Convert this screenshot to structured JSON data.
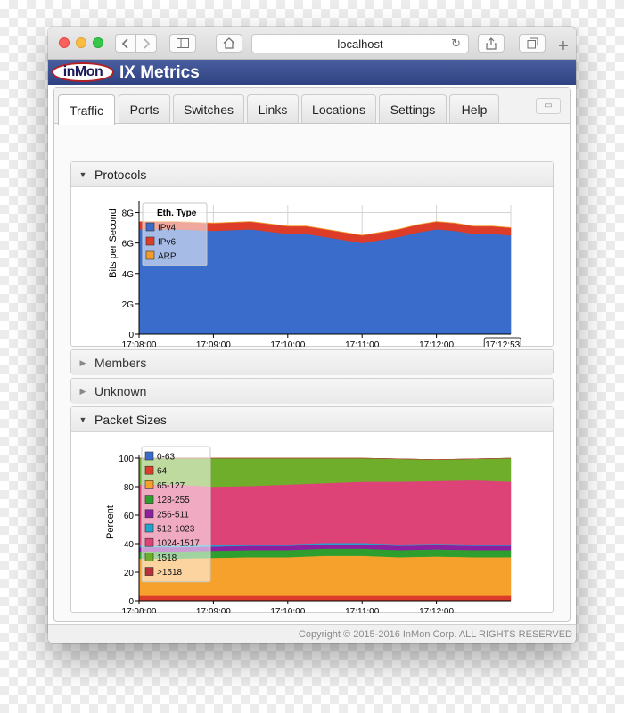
{
  "browser": {
    "url": "localhost",
    "reload_glyph": "↻",
    "new_tab_glyph": "+",
    "icons": [
      "back-icon",
      "forward-icon",
      "sidebar-icon",
      "home-icon",
      "reload-icon",
      "share-icon",
      "tabs-icon",
      "new-tab-icon"
    ]
  },
  "app": {
    "logo_text": "inMon",
    "title": "IX Metrics"
  },
  "tabs": [
    {
      "label": "Traffic",
      "active": true
    },
    {
      "label": "Ports",
      "active": false
    },
    {
      "label": "Switches",
      "active": false
    },
    {
      "label": "Links",
      "active": false
    },
    {
      "label": "Locations",
      "active": false
    },
    {
      "label": "Settings",
      "active": false
    },
    {
      "label": "Help",
      "active": false
    }
  ],
  "panels": {
    "protocols": {
      "title": "Protocols",
      "expanded": true
    },
    "members": {
      "title": "Members",
      "expanded": false
    },
    "unknown": {
      "title": "Unknown",
      "expanded": false
    },
    "packet_sizes": {
      "title": "Packet Sizes",
      "expanded": true
    }
  },
  "footer": "Copyright © 2015-2016 InMon Corp. ALL RIGHTS RESERVED",
  "chart_data": [
    {
      "type": "area",
      "stacked": true,
      "ylabel": "Bits per Second",
      "ylim": [
        0,
        8.5
      ],
      "y_ticks": [
        "0",
        "2G",
        "4G",
        "6G",
        "8G"
      ],
      "y_tick_values": [
        0,
        2,
        4,
        6,
        8
      ],
      "x_ticks": [
        "17:08:00",
        "17:09:00",
        "17:10:00",
        "17:11:00",
        "17:12:00"
      ],
      "x_tick_minutes": [
        0,
        1,
        2,
        3,
        4
      ],
      "x_end_minutes": 5,
      "cursor_label": "17:12:53",
      "cursor_minutes": 4.883,
      "legend_title": "Eth. Type",
      "legend_position": "top-left",
      "grid": true,
      "x": [
        0,
        0.5,
        1,
        1.5,
        2,
        2.25,
        2.5,
        2.75,
        3,
        3.25,
        3.5,
        3.75,
        4,
        4.25,
        4.5,
        4.75,
        5
      ],
      "series": [
        {
          "name": "IPv4",
          "color": "#3a6ccb",
          "values": [
            6.9,
            6.9,
            6.8,
            6.9,
            6.6,
            6.6,
            6.4,
            6.2,
            6.0,
            6.2,
            6.4,
            6.7,
            6.9,
            6.8,
            6.6,
            6.6,
            6.5
          ]
        },
        {
          "name": "IPv6",
          "color": "#dc3c28",
          "values": [
            0.5,
            0.5,
            0.5,
            0.5,
            0.5,
            0.5,
            0.5,
            0.5,
            0.5,
            0.5,
            0.5,
            0.5,
            0.5,
            0.5,
            0.5,
            0.5,
            0.5
          ]
        },
        {
          "name": "ARP",
          "color": "#f39b2c",
          "values": [
            0.02,
            0.02,
            0.02,
            0.02,
            0.02,
            0.02,
            0.02,
            0.02,
            0.02,
            0.02,
            0.02,
            0.02,
            0.02,
            0.02,
            0.02,
            0.02,
            0.02
          ]
        }
      ]
    },
    {
      "type": "area",
      "stacked": true,
      "ylabel": "Percent",
      "ylim": [
        0,
        100
      ],
      "y_ticks": [
        "0",
        "20",
        "40",
        "60",
        "80",
        "100"
      ],
      "y_tick_values": [
        0,
        20,
        40,
        60,
        80,
        100
      ],
      "x_ticks": [
        "17:08:00",
        "17:09:00",
        "17:10:00",
        "17:11:00",
        "17:12:00"
      ],
      "x_tick_minutes": [
        0,
        1,
        2,
        3,
        4
      ],
      "x_end_minutes": 5,
      "legend_position": "top-left",
      "grid": false,
      "x": [
        0,
        0.5,
        1,
        1.5,
        2,
        2.5,
        3,
        3.5,
        4,
        4.5,
        5
      ],
      "series": [
        {
          "name": "0-63",
          "color": "#3a6ccb",
          "values": [
            0.5,
            0.5,
            0.5,
            0.5,
            0.5,
            0.5,
            0.5,
            0.5,
            0.5,
            0.5,
            0.5
          ]
        },
        {
          "name": "64",
          "color": "#dc3c28",
          "values": [
            3,
            3,
            3,
            3,
            3,
            3,
            3,
            3,
            3,
            3,
            3
          ]
        },
        {
          "name": "65-127",
          "color": "#f7a12d",
          "values": [
            26,
            26,
            26.5,
            27,
            27,
            28,
            28,
            27,
            27.5,
            27,
            27
          ]
        },
        {
          "name": "128-255",
          "color": "#2e9e2e",
          "values": [
            5,
            5,
            5,
            5,
            5,
            5,
            5,
            5,
            5,
            5,
            5
          ]
        },
        {
          "name": "256-511",
          "color": "#8e1fa0",
          "values": [
            3,
            3,
            3,
            3,
            3,
            3,
            3,
            3,
            3,
            3,
            3
          ]
        },
        {
          "name": "512-1023",
          "color": "#1fa5cc",
          "values": [
            1,
            1,
            1,
            1,
            1,
            1,
            1,
            1,
            1,
            1,
            1
          ]
        },
        {
          "name": "1024-1517",
          "color": "#de4378",
          "values": [
            43,
            43,
            41,
            41,
            42,
            42,
            43,
            44,
            44,
            45,
            44
          ]
        },
        {
          "name": "1518",
          "color": "#6fae2a",
          "values": [
            18.5,
            18.5,
            20,
            19.5,
            18.5,
            17.5,
            16.5,
            16,
            15,
            15,
            16.5
          ]
        },
        {
          "name": ">1518",
          "color": "#b7323a",
          "values": [
            0,
            0,
            0,
            0,
            0,
            0,
            0,
            0,
            0,
            0,
            0
          ]
        }
      ]
    }
  ]
}
